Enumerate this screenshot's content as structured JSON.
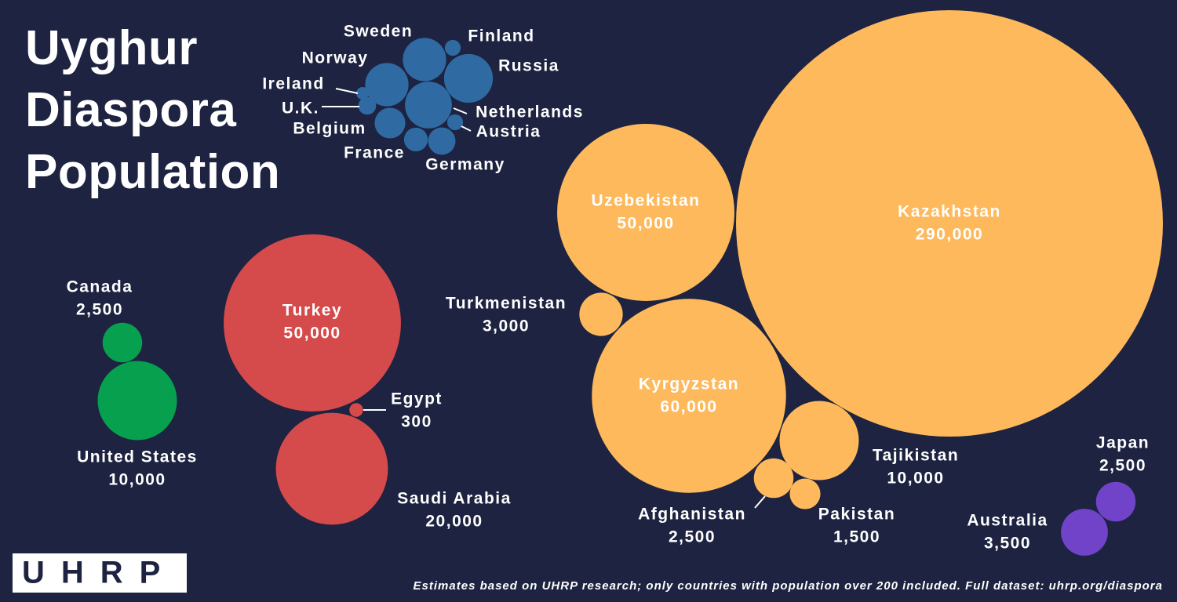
{
  "chart_data": {
    "type": "bubble",
    "title": "Uyghur Diaspora Population",
    "source": "Estimates based on UHRP research; only countries with population over 200 included. Full dataset: uhrp.org/diaspora",
    "logo": "UHRP",
    "series": [
      {
        "color": "#2f6aa3",
        "categories": [
          "Sweden",
          "Finland",
          "Russia",
          "Norway",
          "Netherlands",
          "Ireland",
          "U.K.",
          "Belgium",
          "Austria",
          "France",
          "Germany"
        ],
        "values": [
          3000,
          400,
          3800,
          3000,
          3500,
          250,
          500,
          1500,
          400,
          900,
          1200
        ]
      },
      {
        "color": "#fdb95c",
        "categories": [
          "Kazakhstan",
          "Uzebekistan",
          "Turkmenistan",
          "Kyrgyzstan",
          "Tajikistan",
          "Afghanistan",
          "Pakistan"
        ],
        "values": [
          290000,
          50000,
          3000,
          60000,
          10000,
          2500,
          1500
        ],
        "value_labels": [
          "290,000",
          "50,000",
          "3,000",
          "60,000",
          "10,000",
          "2,500",
          "1,500"
        ]
      },
      {
        "color": "#d54a4a",
        "categories": [
          "Turkey",
          "Egypt",
          "Saudi Arabia"
        ],
        "values": [
          50000,
          300,
          20000
        ],
        "value_labels": [
          "50,000",
          "300",
          "20,000"
        ]
      },
      {
        "color": "#06a04e",
        "categories": [
          "Canada",
          "United States"
        ],
        "values": [
          2500,
          10000
        ],
        "value_labels": [
          "2,500",
          "10,000"
        ]
      },
      {
        "color": "#7143c9",
        "categories": [
          "Japan",
          "Australia"
        ],
        "values": [
          2500,
          3500
        ],
        "value_labels": [
          "2,500",
          "3,500"
        ]
      }
    ]
  }
}
